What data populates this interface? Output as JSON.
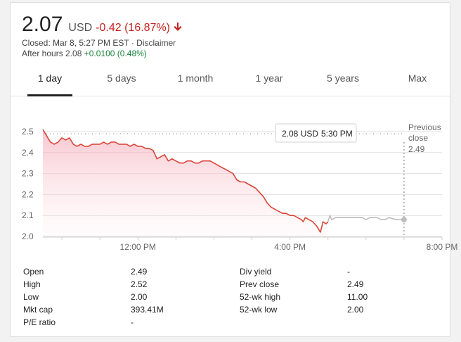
{
  "quote": {
    "price": "2.07",
    "currency": "USD",
    "change": "-0.42 (16.87%)",
    "closed_text": "Closed: Mar 8, 5:27 PM EST · Disclaimer",
    "after_hours_label": "After hours 2.08",
    "after_hours_change": "+0.0100 (0.48%)"
  },
  "tabs": [
    {
      "label": "1 day",
      "active": true
    },
    {
      "label": "5 days"
    },
    {
      "label": "1 month"
    },
    {
      "label": "1 year"
    },
    {
      "label": "5 years"
    },
    {
      "label": "Max"
    }
  ],
  "chart_data": {
    "type": "line",
    "y_ticks": [
      "2.5",
      "2.4",
      "2.3",
      "2.2",
      "2.1",
      "2.0"
    ],
    "ylim": [
      2.0,
      2.5
    ],
    "x_ticks": [
      "12:00 PM",
      "4:00 PM",
      "8:00 PM"
    ],
    "x_range_hours": [
      9.5,
      20.0
    ],
    "previous_close": 2.49,
    "previous_close_label_1": "Previous",
    "previous_close_label_2": "close",
    "previous_close_value": "2.49",
    "tooltip_price": "2.08 USD",
    "tooltip_time": "5:30 PM",
    "colors": {
      "regular": "#db4437",
      "after_hours": "#bdbdbd",
      "grid": "#e0e0e0"
    },
    "series": [
      {
        "session": "regular",
        "points": [
          [
            9.5,
            2.51
          ],
          [
            9.6,
            2.48
          ],
          [
            9.7,
            2.45
          ],
          [
            9.8,
            2.44
          ],
          [
            9.9,
            2.45
          ],
          [
            10.0,
            2.47
          ],
          [
            10.1,
            2.46
          ],
          [
            10.2,
            2.47
          ],
          [
            10.3,
            2.44
          ],
          [
            10.4,
            2.43
          ],
          [
            10.5,
            2.44
          ],
          [
            10.6,
            2.43
          ],
          [
            10.7,
            2.43
          ],
          [
            10.8,
            2.44
          ],
          [
            10.9,
            2.44
          ],
          [
            11.0,
            2.44
          ],
          [
            11.1,
            2.45
          ],
          [
            11.2,
            2.44
          ],
          [
            11.3,
            2.45
          ],
          [
            11.4,
            2.45
          ],
          [
            11.5,
            2.44
          ],
          [
            11.6,
            2.44
          ],
          [
            11.7,
            2.44
          ],
          [
            11.8,
            2.43
          ],
          [
            11.9,
            2.44
          ],
          [
            12.0,
            2.43
          ],
          [
            12.1,
            2.43
          ],
          [
            12.2,
            2.42
          ],
          [
            12.3,
            2.42
          ],
          [
            12.4,
            2.41
          ],
          [
            12.5,
            2.37
          ],
          [
            12.6,
            2.38
          ],
          [
            12.7,
            2.39
          ],
          [
            12.8,
            2.36
          ],
          [
            12.9,
            2.37
          ],
          [
            13.0,
            2.36
          ],
          [
            13.1,
            2.35
          ],
          [
            13.2,
            2.35
          ],
          [
            13.3,
            2.36
          ],
          [
            13.4,
            2.36
          ],
          [
            13.5,
            2.35
          ],
          [
            13.6,
            2.35
          ],
          [
            13.7,
            2.36
          ],
          [
            13.8,
            2.36
          ],
          [
            13.9,
            2.36
          ],
          [
            14.0,
            2.35
          ],
          [
            14.1,
            2.34
          ],
          [
            14.2,
            2.33
          ],
          [
            14.3,
            2.32
          ],
          [
            14.4,
            2.31
          ],
          [
            14.5,
            2.3
          ],
          [
            14.6,
            2.27
          ],
          [
            14.7,
            2.26
          ],
          [
            14.8,
            2.26
          ],
          [
            14.9,
            2.25
          ],
          [
            15.0,
            2.24
          ],
          [
            15.1,
            2.23
          ],
          [
            15.2,
            2.21
          ],
          [
            15.3,
            2.19
          ],
          [
            15.4,
            2.16
          ],
          [
            15.5,
            2.14
          ],
          [
            15.6,
            2.13
          ],
          [
            15.7,
            2.12
          ],
          [
            15.8,
            2.11
          ],
          [
            15.9,
            2.11
          ],
          [
            16.0,
            2.1
          ],
          [
            16.1,
            2.1
          ],
          [
            16.2,
            2.09
          ],
          [
            16.3,
            2.08
          ],
          [
            16.35,
            2.07
          ],
          [
            16.4,
            2.09
          ],
          [
            16.5,
            2.08
          ],
          [
            16.6,
            2.07
          ],
          [
            16.7,
            2.05
          ],
          [
            16.8,
            2.02
          ],
          [
            16.87,
            2.07
          ],
          [
            16.95,
            2.06
          ],
          [
            17.0,
            2.07
          ]
        ]
      },
      {
        "session": "after_hours",
        "points": [
          [
            17.0,
            2.07
          ],
          [
            17.05,
            2.1
          ],
          [
            17.1,
            2.08
          ],
          [
            17.2,
            2.09
          ],
          [
            17.3,
            2.09
          ],
          [
            17.5,
            2.09
          ],
          [
            17.7,
            2.09
          ],
          [
            17.9,
            2.09
          ],
          [
            18.0,
            2.08
          ],
          [
            18.1,
            2.09
          ],
          [
            18.3,
            2.09
          ],
          [
            18.4,
            2.08
          ],
          [
            18.5,
            2.08
          ],
          [
            18.6,
            2.09
          ],
          [
            18.8,
            2.08
          ],
          [
            19.0,
            2.08
          ]
        ]
      }
    ]
  },
  "stats": {
    "left": [
      {
        "label": "Open",
        "value": "2.49"
      },
      {
        "label": "High",
        "value": "2.52"
      },
      {
        "label": "Low",
        "value": "2.00"
      },
      {
        "label": "Mkt cap",
        "value": "393.41M"
      },
      {
        "label": "P/E ratio",
        "value": "-"
      }
    ],
    "right": [
      {
        "label": "Div yield",
        "value": "-"
      },
      {
        "label": "Prev close",
        "value": "2.49"
      },
      {
        "label": "52-wk high",
        "value": "11.00"
      },
      {
        "label": "52-wk low",
        "value": "2.00"
      }
    ]
  }
}
